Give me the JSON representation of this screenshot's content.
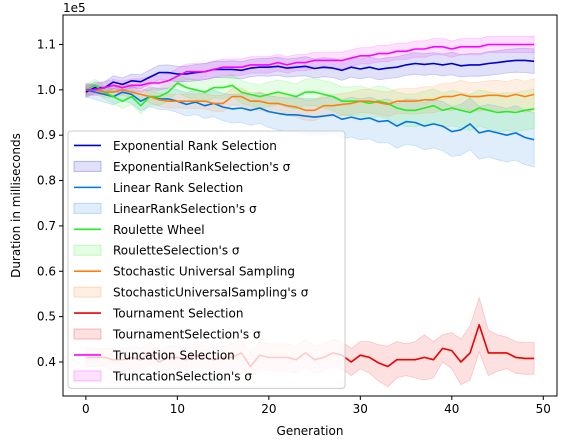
{
  "chart_data": {
    "type": "line",
    "title": "",
    "xlabel": "Generation",
    "ylabel": "Duration in milliseconds",
    "y_multiplier_label": "1e5",
    "xlim": [
      -2.5,
      51.5
    ],
    "ylim": [
      0.325,
      1.165
    ],
    "x_ticks": [
      0,
      10,
      20,
      30,
      40,
      50
    ],
    "y_ticks": [
      0.4,
      0.5,
      0.6,
      0.7,
      0.8,
      0.9,
      1.0,
      1.1
    ],
    "grid": false,
    "legend_position": "lower-left",
    "x": [
      0,
      1,
      2,
      3,
      4,
      5,
      6,
      7,
      8,
      9,
      10,
      11,
      12,
      13,
      14,
      15,
      16,
      17,
      18,
      19,
      20,
      21,
      22,
      23,
      24,
      25,
      26,
      27,
      28,
      29,
      30,
      31,
      32,
      33,
      34,
      35,
      36,
      37,
      38,
      39,
      40,
      41,
      42,
      43,
      44,
      45,
      46,
      47,
      48,
      49
    ],
    "series": [
      {
        "name": "Exponential Rank Selection",
        "band_name": "ExponentialRankSelection's σ",
        "color": "#0000cc",
        "values": [
          0.995,
          1.005,
          1.004,
          1.017,
          1.012,
          1.02,
          1.018,
          1.028,
          1.038,
          1.038,
          1.035,
          1.035,
          1.038,
          1.04,
          1.045,
          1.045,
          1.045,
          1.043,
          1.048,
          1.05,
          1.05,
          1.052,
          1.048,
          1.05,
          1.052,
          1.047,
          1.05,
          1.048,
          1.043,
          1.05,
          1.046,
          1.05,
          1.045,
          1.048,
          1.05,
          1.055,
          1.058,
          1.056,
          1.058,
          1.055,
          1.058,
          1.053,
          1.055,
          1.055,
          1.058,
          1.06,
          1.063,
          1.065,
          1.065,
          1.063
        ],
        "sigma": [
          0.012,
          0.012,
          0.013,
          0.014,
          0.014,
          0.015,
          0.015,
          0.016,
          0.016,
          0.017,
          0.017,
          0.017,
          0.018,
          0.018,
          0.018,
          0.018,
          0.019,
          0.019,
          0.019,
          0.019,
          0.02,
          0.02,
          0.02,
          0.02,
          0.021,
          0.021,
          0.021,
          0.021,
          0.022,
          0.022,
          0.022,
          0.022,
          0.023,
          0.023,
          0.023,
          0.023,
          0.024,
          0.024,
          0.024,
          0.024,
          0.025,
          0.025,
          0.025,
          0.025,
          0.026,
          0.026,
          0.026,
          0.026,
          0.027,
          0.027
        ]
      },
      {
        "name": "Linear Rank Selection",
        "band_name": "LinearRankSelection's σ",
        "color": "#0077dd",
        "values": [
          1.0,
          0.995,
          0.99,
          0.985,
          0.995,
          0.99,
          0.975,
          0.985,
          0.98,
          0.98,
          0.975,
          0.968,
          0.973,
          0.965,
          0.97,
          0.962,
          0.958,
          0.96,
          0.955,
          0.96,
          0.952,
          0.948,
          0.945,
          0.945,
          0.942,
          0.94,
          0.942,
          0.945,
          0.935,
          0.94,
          0.935,
          0.938,
          0.93,
          0.932,
          0.92,
          0.93,
          0.928,
          0.92,
          0.925,
          0.92,
          0.908,
          0.912,
          0.925,
          0.905,
          0.91,
          0.905,
          0.9,
          0.905,
          0.895,
          0.89
        ],
        "sigma": [
          0.015,
          0.016,
          0.017,
          0.018,
          0.019,
          0.02,
          0.021,
          0.022,
          0.023,
          0.024,
          0.025,
          0.026,
          0.027,
          0.028,
          0.029,
          0.03,
          0.031,
          0.032,
          0.033,
          0.034,
          0.035,
          0.036,
          0.037,
          0.038,
          0.039,
          0.04,
          0.041,
          0.042,
          0.043,
          0.044,
          0.045,
          0.046,
          0.047,
          0.048,
          0.049,
          0.05,
          0.051,
          0.052,
          0.053,
          0.054,
          0.055,
          0.056,
          0.057,
          0.058,
          0.058,
          0.059,
          0.059,
          0.06,
          0.06,
          0.06
        ]
      },
      {
        "name": "Roulette Wheel",
        "band_name": "RouletteSelection's σ",
        "color": "#22ee22",
        "values": [
          1.0,
          1.01,
          0.995,
          0.985,
          0.975,
          0.985,
          0.965,
          0.985,
          0.985,
          0.995,
          1.015,
          1.005,
          1.0,
          0.995,
          1.005,
          1.005,
          1.01,
          0.995,
          0.99,
          0.985,
          0.99,
          0.995,
          0.99,
          0.985,
          0.995,
          0.995,
          0.99,
          0.985,
          0.975,
          0.975,
          0.975,
          0.97,
          0.975,
          0.97,
          0.96,
          0.955,
          0.955,
          0.96,
          0.965,
          0.955,
          0.96,
          0.955,
          0.95,
          0.96,
          0.955,
          0.95,
          0.952,
          0.95,
          0.955,
          0.958
        ],
        "sigma": [
          0.012,
          0.013,
          0.014,
          0.015,
          0.016,
          0.017,
          0.018,
          0.018,
          0.019,
          0.02,
          0.02,
          0.021,
          0.022,
          0.022,
          0.023,
          0.024,
          0.024,
          0.025,
          0.025,
          0.026,
          0.027,
          0.027,
          0.028,
          0.028,
          0.029,
          0.03,
          0.03,
          0.031,
          0.031,
          0.032,
          0.033,
          0.033,
          0.034,
          0.034,
          0.035,
          0.036,
          0.036,
          0.037,
          0.037,
          0.038,
          0.039,
          0.039,
          0.04,
          0.04,
          0.041,
          0.042,
          0.042,
          0.043,
          0.043,
          0.044
        ]
      },
      {
        "name": "Stochastic Universal Sampling",
        "band_name": "StochasticUniversalSampling's σ",
        "color": "#ff7f0e",
        "values": [
          1.0,
          1.0,
          0.995,
          0.995,
          1.0,
          0.995,
          0.99,
          0.985,
          0.978,
          0.975,
          0.975,
          0.975,
          0.975,
          0.975,
          0.97,
          0.97,
          0.985,
          0.985,
          0.975,
          0.975,
          0.97,
          0.97,
          0.965,
          0.962,
          0.955,
          0.955,
          0.965,
          0.965,
          0.968,
          0.97,
          0.975,
          0.975,
          0.972,
          0.968,
          0.975,
          0.975,
          0.975,
          0.978,
          0.978,
          0.985,
          0.985,
          0.99,
          0.985,
          0.985,
          0.988,
          0.988,
          0.985,
          0.99,
          0.985,
          0.99
        ],
        "sigma": [
          0.01,
          0.011,
          0.011,
          0.012,
          0.012,
          0.013,
          0.013,
          0.014,
          0.014,
          0.015,
          0.015,
          0.016,
          0.016,
          0.017,
          0.017,
          0.018,
          0.018,
          0.019,
          0.019,
          0.02,
          0.02,
          0.021,
          0.021,
          0.022,
          0.022,
          0.023,
          0.023,
          0.024,
          0.024,
          0.025,
          0.025,
          0.026,
          0.026,
          0.027,
          0.027,
          0.028,
          0.028,
          0.029,
          0.029,
          0.03,
          0.03,
          0.031,
          0.031,
          0.032,
          0.032,
          0.033,
          0.033,
          0.034,
          0.034,
          0.035
        ]
      },
      {
        "name": "Tournament Selection",
        "band_name": "TournamentSelection's σ",
        "color": "#ee0000",
        "values": [
          0.41,
          0.41,
          0.41,
          0.405,
          0.405,
          0.41,
          0.405,
          0.42,
          0.4,
          0.41,
          0.41,
          0.405,
          0.415,
          0.41,
          0.405,
          0.41,
          0.41,
          0.42,
          0.39,
          0.415,
          0.41,
          0.41,
          0.41,
          0.405,
          0.42,
          0.405,
          0.41,
          0.42,
          0.415,
          0.4,
          0.415,
          0.41,
          0.398,
          0.39,
          0.405,
          0.405,
          0.405,
          0.41,
          0.405,
          0.43,
          0.425,
          0.4,
          0.42,
          0.482,
          0.42,
          0.42,
          0.42,
          0.41,
          0.408,
          0.408
        ],
        "sigma": [
          0.02,
          0.02,
          0.02,
          0.025,
          0.025,
          0.025,
          0.025,
          0.025,
          0.025,
          0.025,
          0.025,
          0.025,
          0.025,
          0.025,
          0.025,
          0.025,
          0.03,
          0.03,
          0.03,
          0.03,
          0.03,
          0.03,
          0.03,
          0.03,
          0.03,
          0.03,
          0.03,
          0.03,
          0.03,
          0.03,
          0.03,
          0.035,
          0.04,
          0.045,
          0.04,
          0.035,
          0.04,
          0.05,
          0.04,
          0.03,
          0.04,
          0.05,
          0.06,
          0.06,
          0.05,
          0.04,
          0.035,
          0.035,
          0.035,
          0.035
        ]
      },
      {
        "name": "Truncation Selection",
        "band_name": "TruncationSelection's σ",
        "color": "#ff00ff",
        "values": [
          1.0,
          1.0,
          1.005,
          1.01,
          1.005,
          1.01,
          1.01,
          1.015,
          1.015,
          1.02,
          1.03,
          1.04,
          1.04,
          1.04,
          1.045,
          1.05,
          1.05,
          1.05,
          1.055,
          1.055,
          1.055,
          1.06,
          1.055,
          1.06,
          1.06,
          1.065,
          1.065,
          1.065,
          1.065,
          1.07,
          1.075,
          1.075,
          1.08,
          1.08,
          1.085,
          1.085,
          1.09,
          1.09,
          1.095,
          1.095,
          1.09,
          1.095,
          1.095,
          1.095,
          1.1,
          1.1,
          1.1,
          1.1,
          1.1,
          1.1
        ],
        "sigma": [
          0.012,
          0.012,
          0.013,
          0.013,
          0.014,
          0.014,
          0.015,
          0.015,
          0.016,
          0.016,
          0.017,
          0.017,
          0.018,
          0.018,
          0.018,
          0.018,
          0.018,
          0.018,
          0.018,
          0.018,
          0.018,
          0.018,
          0.018,
          0.018,
          0.018,
          0.018,
          0.018,
          0.018,
          0.018,
          0.018,
          0.018,
          0.018,
          0.018,
          0.018,
          0.018,
          0.018,
          0.018,
          0.018,
          0.018,
          0.018,
          0.018,
          0.018,
          0.018,
          0.018,
          0.018,
          0.018,
          0.018,
          0.018,
          0.018,
          0.018
        ]
      }
    ]
  }
}
